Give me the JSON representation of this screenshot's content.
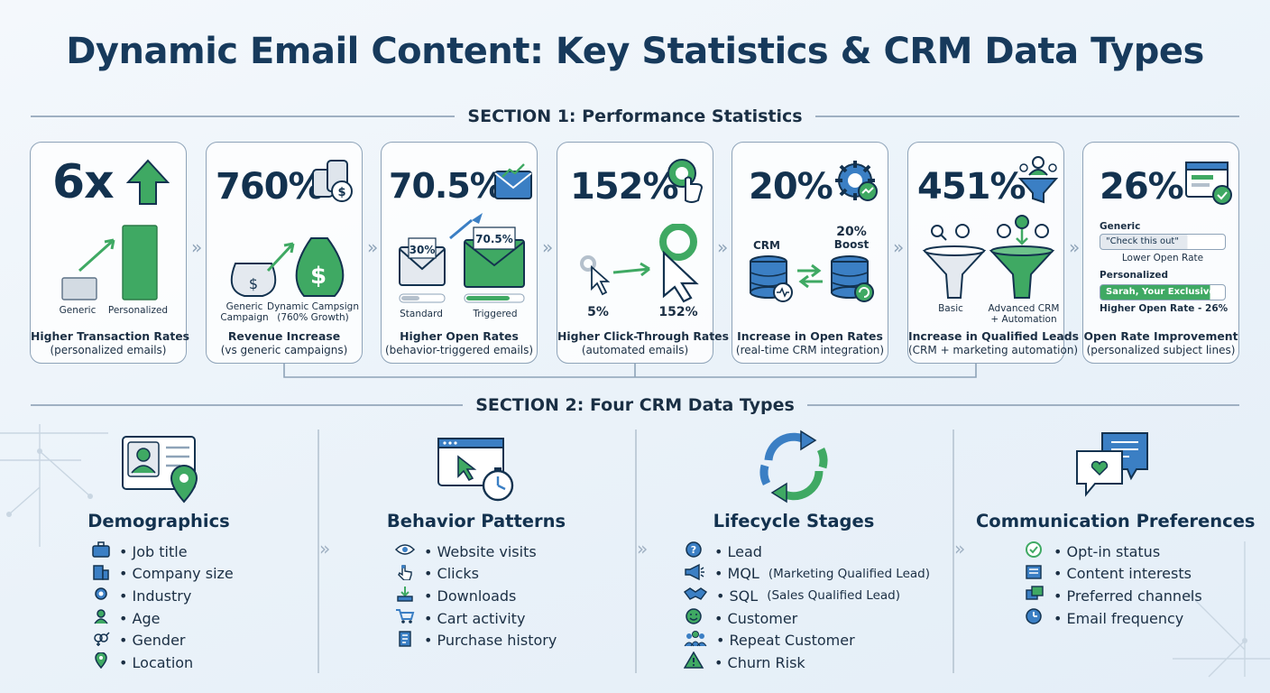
{
  "title": "Dynamic Email Content: Key Statistics & CRM Data Types",
  "section1": "SECTION 1: Performance Statistics",
  "section2": "SECTION 2: Four CRM Data Types",
  "cards": [
    {
      "big": "6x",
      "cap1": "Higher Transaction Rates",
      "cap2": "(personalized emails)",
      "a": "Generic",
      "b": "Personalized"
    },
    {
      "big": "760%",
      "cap1": "Revenue Increase",
      "cap2": "(vs generic campaigns)",
      "a1": "Generic",
      "a2": "Campaign",
      "b1": "Dynamic Campsign",
      "b2": "(760% Growth)"
    },
    {
      "big": "70.5%",
      "cap1": "Higher Open Rates",
      "cap2": "(behavior-triggered emails)",
      "a": "Standard",
      "b": "Triggered",
      "a_val": "30%",
      "b_val": "70.5%"
    },
    {
      "big": "152%",
      "cap1": "Higher Click-Through Rates",
      "cap2": "(automated emails)",
      "a": "5%",
      "b": "152%"
    },
    {
      "big": "20%",
      "cap1": "Increase in Open Rates",
      "cap2": "(real-time CRM integration)",
      "a": "CRM",
      "b1": "20%",
      "b2": "Boost"
    },
    {
      "big": "451%",
      "cap1": "Increase in Qualified Leads",
      "cap2": "(CRM + marketing automation)",
      "a": "Basic",
      "b1": "Advanced CRM",
      "b2": "+ Automation"
    },
    {
      "big": "26%",
      "cap1": "Open Rate Improvement",
      "cap2": "(personalized subject lines)",
      "generic_label": "Generic",
      "generic_subject": "\"Check this out\"",
      "generic_result": "Lower Open Rate",
      "personal_label": "Personalized",
      "personal_subject": "Sarah, Your Exclusive Offer!\"",
      "personal_result": "Higher Open Rate - 26%"
    }
  ],
  "columns": [
    {
      "title": "Demographics",
      "items": [
        "• Job title",
        "• Company size",
        "• Industry",
        "• Age",
        "• Gender",
        "• Location"
      ]
    },
    {
      "title": "Behavior Patterns",
      "items": [
        "• Website visits",
        "• Clicks",
        "• Downloads",
        "• Cart activity",
        "• Purchase history"
      ]
    },
    {
      "title": "Lifecycle Stages",
      "items": [
        {
          "main": "• Lead",
          "sub": ""
        },
        {
          "main": "• MQL",
          "sub": "(Marketing Qualified Lead)"
        },
        {
          "main": "• SQL",
          "sub": "(Sales Qualified Lead)"
        },
        {
          "main": "• Customer",
          "sub": ""
        },
        {
          "main": "• Repeat Customer",
          "sub": ""
        },
        {
          "main": "• Churn Risk",
          "sub": ""
        }
      ]
    },
    {
      "title": "Communication Preferences",
      "items": [
        "• Opt-in status",
        "• Content interests",
        "• Preferred channels",
        "• Email frequency"
      ]
    }
  ],
  "colors": {
    "navy": "#13324f",
    "green": "#3fa963",
    "blue": "#3b7fc4",
    "border": "#8ea3b8"
  }
}
